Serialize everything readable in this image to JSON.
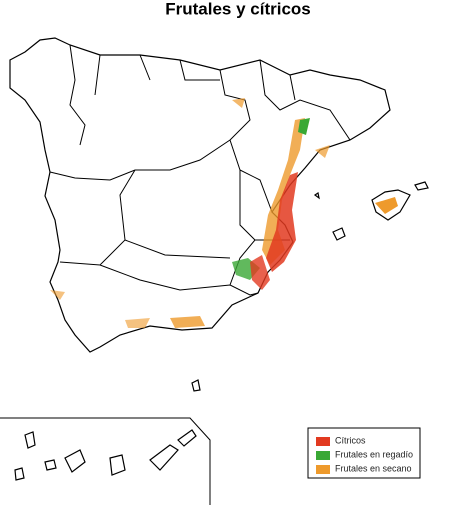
{
  "title": "Frutales y cítricos",
  "legend": {
    "items": [
      {
        "label": "Cítricos",
        "color": "#e23a20"
      },
      {
        "label": "Frutales en regadío",
        "color": "#3aa835"
      },
      {
        "label": "Frutales en secano",
        "color": "#ee9a2c"
      }
    ]
  }
}
